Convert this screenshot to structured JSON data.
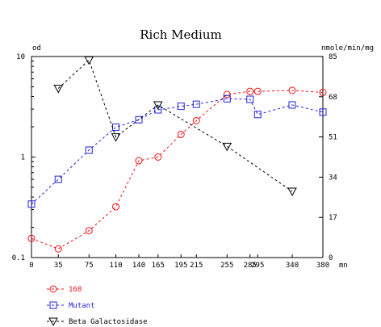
{
  "chart_data": {
    "type": "line",
    "title": "Rich Medium",
    "left_axis": {
      "label": "od",
      "scale": "log",
      "range": [
        0.1,
        10
      ],
      "ticks": [
        {
          "value": 0.1,
          "label": "0.1"
        },
        {
          "value": 1,
          "label": "1"
        },
        {
          "value": 10,
          "label": "10"
        }
      ]
    },
    "right_axis": {
      "label": "nmole/min/mg",
      "scale": "linear",
      "range": [
        0,
        85
      ],
      "ticks": [
        {
          "value": 0,
          "label": "0"
        },
        {
          "value": 17,
          "label": "17"
        },
        {
          "value": 34,
          "label": "34"
        },
        {
          "value": 51,
          "label": "51"
        },
        {
          "value": 68,
          "label": "68"
        },
        {
          "value": 85,
          "label": "85"
        }
      ]
    },
    "x_axis": {
      "unit": "mn",
      "range": [
        0,
        380
      ],
      "ticks": [
        {
          "value": 0,
          "label": "0"
        },
        {
          "value": 35,
          "label": "35"
        },
        {
          "value": 75,
          "label": "75"
        },
        {
          "value": 110,
          "label": "110"
        },
        {
          "value": 140,
          "label": "140"
        },
        {
          "value": 165,
          "label": "165"
        },
        {
          "value": 195,
          "label": "195"
        },
        {
          "value": 215,
          "label": "215"
        },
        {
          "value": 255,
          "label": "255"
        },
        {
          "value": 285,
          "label": "285"
        },
        {
          "value": 295,
          "label": "295"
        },
        {
          "value": 340,
          "label": "340"
        },
        {
          "value": 380,
          "label": "380"
        }
      ]
    },
    "series": [
      {
        "name": "168",
        "axis": "left",
        "marker": "circle",
        "color": "#ee1111",
        "points": [
          [
            0,
            0.155
          ],
          [
            35,
            0.122
          ],
          [
            75,
            0.185
          ],
          [
            110,
            0.32
          ],
          [
            140,
            0.92
          ],
          [
            165,
            1.0
          ],
          [
            195,
            1.68
          ],
          [
            215,
            2.3
          ],
          [
            255,
            4.2
          ],
          [
            285,
            4.5
          ],
          [
            295,
            4.5
          ],
          [
            340,
            4.6
          ],
          [
            380,
            4.4
          ]
        ]
      },
      {
        "name": "Mutant",
        "axis": "left",
        "marker": "square",
        "color": "#2222dd",
        "points": [
          [
            0,
            0.34
          ],
          [
            35,
            0.6
          ],
          [
            75,
            1.17
          ],
          [
            110,
            1.98
          ],
          [
            140,
            2.35
          ],
          [
            165,
            2.95
          ],
          [
            195,
            3.2
          ],
          [
            215,
            3.35
          ],
          [
            255,
            3.8
          ],
          [
            285,
            3.75
          ],
          [
            295,
            2.65
          ],
          [
            340,
            3.3
          ],
          [
            380,
            2.8
          ]
        ]
      },
      {
        "name": "Beta Galactosidase",
        "axis": "right",
        "marker": "triangle-down",
        "color": "#000000",
        "points": [
          [
            35,
            71.5
          ],
          [
            75,
            83.5
          ],
          [
            110,
            51
          ],
          [
            165,
            64.5
          ],
          [
            255,
            47
          ],
          [
            340,
            28
          ]
        ]
      }
    ],
    "legend_position": "bottom-left",
    "grid": false
  }
}
